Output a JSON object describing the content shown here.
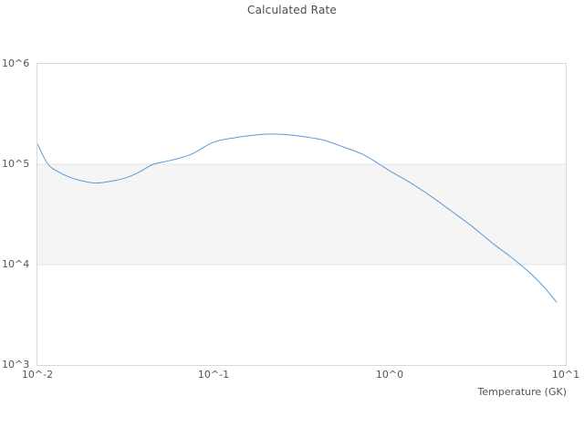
{
  "chart_data": {
    "type": "line",
    "title": "Calculated Rate",
    "xlabel": "Temperature (GK)",
    "ylabel": "",
    "x_scale": "log",
    "y_scale": "log",
    "xlim": [
      0.01,
      10
    ],
    "ylim": [
      1000,
      1000000
    ],
    "x_ticks": [
      {
        "label": "10^-2",
        "value": 0.01
      },
      {
        "label": "10^-1",
        "value": 0.1
      },
      {
        "label": "10^0",
        "value": 1
      },
      {
        "label": "10^1",
        "value": 10
      }
    ],
    "y_ticks": [
      {
        "label": "10^6",
        "value": 1000000
      },
      {
        "label": "10^5",
        "value": 100000
      },
      {
        "label": "10^4",
        "value": 10000
      },
      {
        "label": "10^3",
        "value": 1000
      }
    ],
    "grid": "horizontal",
    "legend": "none",
    "shaded_band_y": [
      10000,
      100000
    ],
    "series": [
      {
        "name": "calculated rate",
        "color": "#5b9ad8",
        "points": [
          [
            0.01,
            160000
          ],
          [
            0.0115,
            100000
          ],
          [
            0.0135,
            82000
          ],
          [
            0.016,
            72000
          ],
          [
            0.0185,
            67500
          ],
          [
            0.0215,
            65000
          ],
          [
            0.026,
            67500
          ],
          [
            0.032,
            73500
          ],
          [
            0.0385,
            85000
          ],
          [
            0.0455,
            100000
          ],
          [
            0.058,
            110000
          ],
          [
            0.075,
            126000
          ],
          [
            0.1,
            166000
          ],
          [
            0.135,
            185000
          ],
          [
            0.175,
            196000
          ],
          [
            0.215,
            200000
          ],
          [
            0.27,
            196000
          ],
          [
            0.33,
            188000
          ],
          [
            0.42,
            174000
          ],
          [
            0.55,
            148000
          ],
          [
            0.7,
            126000
          ],
          [
            0.875,
            100000
          ],
          [
            1.0,
            86000
          ],
          [
            1.3,
            66000
          ],
          [
            1.7,
            48500
          ],
          [
            2.2,
            35000
          ],
          [
            2.9,
            24500
          ],
          [
            3.9,
            16000
          ],
          [
            4.8,
            12200
          ],
          [
            5.6,
            9800
          ],
          [
            6.6,
            7600
          ],
          [
            7.7,
            5700
          ],
          [
            8.9,
            4200
          ]
        ]
      }
    ],
    "colors": {
      "line": "#5b9ad8",
      "band_fill": "#f5f5f5",
      "gridline": "#e5e5e5",
      "plot_border": "#d9d9d9",
      "text": "#555555",
      "title_text": "#4d4d4d",
      "background": "#ffffff"
    }
  }
}
